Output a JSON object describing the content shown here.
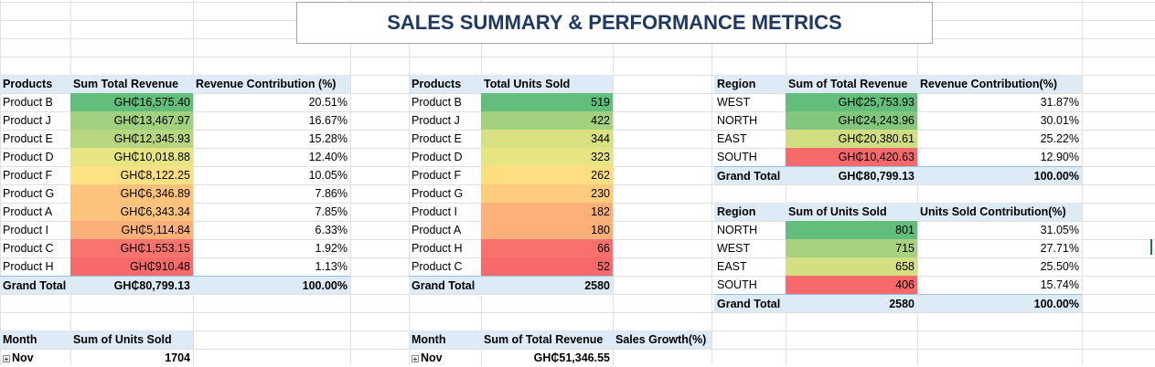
{
  "title": "SALES SUMMARY & PERFORMANCE METRICS",
  "colors": {
    "title": "#1f3864",
    "header_fill": "#ddebf7",
    "scale_high": "#63be7b",
    "scale_mid": "#ffeb84",
    "scale_low": "#f8696b"
  },
  "pivot_product_revenue": {
    "headers": [
      "Products",
      "Sum  Total Revenue",
      "Revenue Contribution (%)"
    ],
    "rows": [
      {
        "name": "Product B",
        "value": "GH₵16,575.40",
        "pct": "20.51%",
        "num": 16575.4
      },
      {
        "name": "Product J",
        "value": "GH₵13,467.97",
        "pct": "16.67%",
        "num": 13467.97
      },
      {
        "name": "Product E",
        "value": "GH₵12,345.93",
        "pct": "15.28%",
        "num": 12345.93
      },
      {
        "name": "Product D",
        "value": "GH₵10,018.88",
        "pct": "12.40%",
        "num": 10018.88
      },
      {
        "name": "Product F",
        "value": "GH₵8,122.25",
        "pct": "10.05%",
        "num": 8122.25
      },
      {
        "name": "Product G",
        "value": "GH₵6,346.89",
        "pct": "7.86%",
        "num": 6346.89
      },
      {
        "name": "Product A",
        "value": "GH₵6,343.34",
        "pct": "7.85%",
        "num": 6343.34
      },
      {
        "name": "Product I",
        "value": "GH₵5,114.84",
        "pct": "6.33%",
        "num": 5114.84
      },
      {
        "name": "Product C",
        "value": "GH₵1,553.15",
        "pct": "1.92%",
        "num": 1553.15
      },
      {
        "name": "Product H",
        "value": "GH₵910.48",
        "pct": "1.13%",
        "num": 910.48
      }
    ],
    "total": {
      "label": "Grand Total",
      "value": "GH₵80,799.13",
      "pct": "100.00%"
    }
  },
  "pivot_product_units": {
    "headers": [
      "Products",
      "Total Units Sold"
    ],
    "rows": [
      {
        "name": "Product B",
        "value": "519",
        "num": 519
      },
      {
        "name": "Product J",
        "value": "422",
        "num": 422
      },
      {
        "name": "Product E",
        "value": "344",
        "num": 344
      },
      {
        "name": "Product D",
        "value": "323",
        "num": 323
      },
      {
        "name": "Product F",
        "value": "262",
        "num": 262
      },
      {
        "name": "Product G",
        "value": "230",
        "num": 230
      },
      {
        "name": "Product I",
        "value": "182",
        "num": 182
      },
      {
        "name": "Product A",
        "value": "180",
        "num": 180
      },
      {
        "name": "Product H",
        "value": "66",
        "num": 66
      },
      {
        "name": "Product C",
        "value": "52",
        "num": 52
      }
    ],
    "total": {
      "label": "Grand Total",
      "value": "2580"
    }
  },
  "pivot_region_revenue": {
    "headers": [
      "Region",
      "Sum of Total Revenue",
      "Revenue Contribution(%)"
    ],
    "rows": [
      {
        "name": "WEST",
        "value": "GH₵25,753.93",
        "pct": "31.87%",
        "num": 25753.93
      },
      {
        "name": "NORTH",
        "value": "GH₵24,243.96",
        "pct": "30.01%",
        "num": 24243.96
      },
      {
        "name": "EAST",
        "value": "GH₵20,380.61",
        "pct": "25.22%",
        "num": 20380.61
      },
      {
        "name": "SOUTH",
        "value": "GH₵10,420.63",
        "pct": "12.90%",
        "num": 10420.63
      }
    ],
    "total": {
      "label": "Grand Total",
      "value": "GH₵80,799.13",
      "pct": "100.00%"
    }
  },
  "pivot_region_units": {
    "headers": [
      "Region",
      "Sum of Units Sold",
      "Units Sold Contribution(%)"
    ],
    "rows": [
      {
        "name": "NORTH",
        "value": "801",
        "pct": "31.05%",
        "num": 801
      },
      {
        "name": "WEST",
        "value": "715",
        "pct": "27.71%",
        "num": 715
      },
      {
        "name": "EAST",
        "value": "658",
        "pct": "25.50%",
        "num": 658
      },
      {
        "name": "SOUTH",
        "value": "406",
        "pct": "15.74%",
        "num": 406
      }
    ],
    "total": {
      "label": "Grand Total",
      "value": "2580",
      "pct": "100.00%"
    }
  },
  "pivot_month_units": {
    "headers": [
      "Month",
      "Sum of Units Sold"
    ],
    "rows": [
      {
        "name": "Nov",
        "value": "1704"
      }
    ]
  },
  "pivot_month_revenue": {
    "headers": [
      "Month",
      "Sum of Total Revenue",
      "Sales Growth(%)"
    ],
    "rows": [
      {
        "name": "Nov",
        "value": "GH₵51,346.55"
      }
    ]
  },
  "icons": {
    "filter": "filter-sort-icon",
    "expand": "expand-plus-icon"
  }
}
